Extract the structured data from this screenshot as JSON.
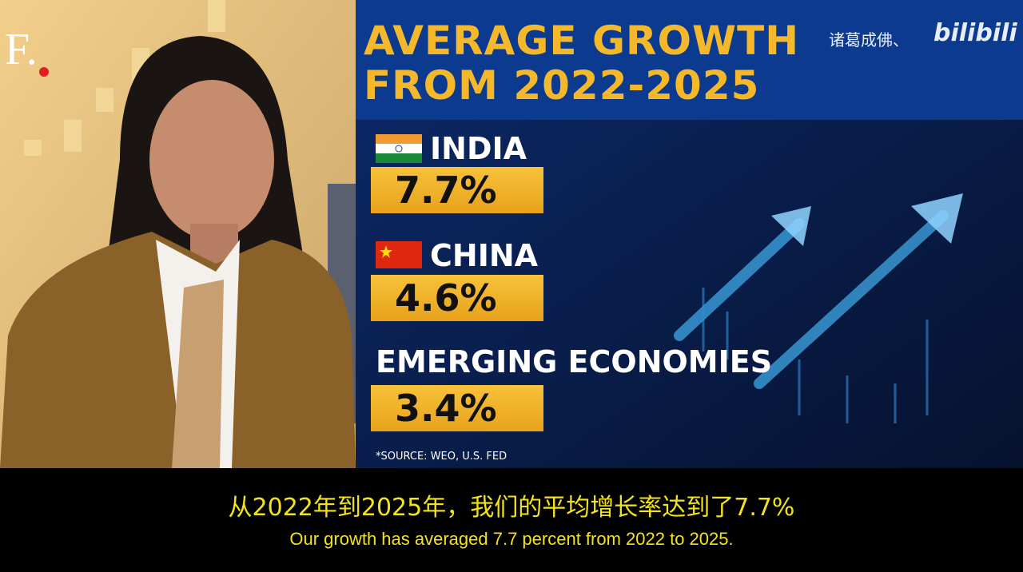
{
  "logo": "F.",
  "graphic": {
    "title": [
      "AVERAGE GROWTH",
      "FROM 2022-2025"
    ],
    "watermark": {
      "user": "诸葛成佛、",
      "site": "bilibili"
    },
    "items": [
      {
        "label": "INDIA",
        "value": "7.7%"
      },
      {
        "label": "CHINA",
        "value": "4.6%"
      },
      {
        "label": "EMERGING ECONOMIES",
        "value": "3.4%"
      }
    ],
    "source": "*SOURCE: WEO, U.S. FED"
  },
  "subtitles": {
    "chinese": "从2022年到2025年，我们的平均增长率达到了7.7%",
    "english": "Our growth has averaged 7.7 percent from 2022 to 2025."
  }
}
